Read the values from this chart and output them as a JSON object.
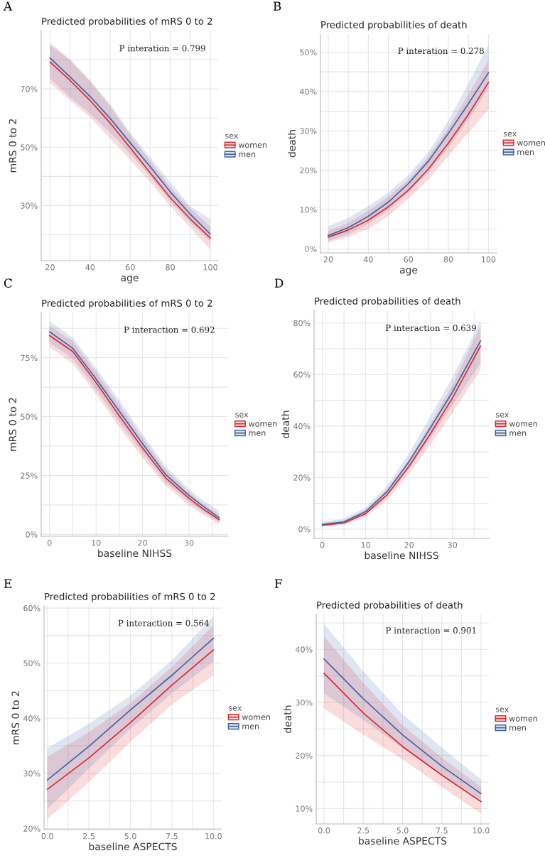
{
  "chart_data": [
    {
      "type": "line",
      "title": "Predicted probabilities of mRS 0 to 2",
      "xlabel": "age",
      "ylabel": "mRS 0 to 2",
      "legend_title": "sex",
      "legend": "right",
      "grid": true,
      "annotations": [
        "A",
        "P interation = 0.799"
      ],
      "x": [
        20,
        30,
        40,
        50,
        60,
        70,
        80,
        90,
        100
      ],
      "xlim": [
        15.6,
        103.9
      ],
      "ylim": [
        11.1,
        90
      ],
      "xticks": [
        20,
        {
          "value": 30,
          "label": null
        },
        40,
        {
          "value": 50,
          "label": null
        },
        60,
        {
          "value": 70,
          "label": null
        },
        80,
        {
          "value": 90,
          "label": null
        },
        100
      ],
      "yticks": [
        {
          "value": 20,
          "label": null
        },
        {
          "value": 30,
          "label": "30%"
        },
        {
          "value": 40,
          "label": null
        },
        {
          "value": 50,
          "label": "50%"
        },
        {
          "value": 60,
          "label": null
        },
        {
          "value": 70,
          "label": "70%"
        },
        {
          "value": 80,
          "label": null
        }
      ],
      "series": [
        {
          "name": "women",
          "color": "#e0262e",
          "values": [
            79.2,
            72.9,
            66.0,
            58.3,
            49.8,
            41.2,
            32.7,
            25.4,
            18.9
          ],
          "lower": [
            72.1,
            66.0,
            60.3,
            53.0,
            45.7,
            38.0,
            29.8,
            22.5,
            14.8
          ],
          "upper": [
            85.1,
            79.8,
            72.5,
            64.0,
            54.2,
            45.3,
            36.3,
            29.0,
            22.9
          ]
        },
        {
          "name": "men",
          "color": "#3f62a8",
          "values": [
            80.6,
            74.1,
            67.4,
            59.9,
            51.5,
            43.3,
            34.7,
            27.0,
            20.2
          ],
          "lower": [
            73.7,
            67.2,
            61.5,
            55.0,
            47.7,
            40.0,
            31.5,
            24.1,
            17.6
          ],
          "upper": [
            85.9,
            80.2,
            72.9,
            64.8,
            55.0,
            46.5,
            38.0,
            29.8,
            25.4
          ]
        }
      ]
    },
    {
      "type": "line",
      "title": "Predicted probabilities of death",
      "xlabel": "age",
      "ylabel": "death",
      "legend_title": "sex",
      "legend": "right",
      "grid": true,
      "annotations": [
        "B",
        "P interation = 0.278"
      ],
      "x": [
        20,
        30,
        40,
        50,
        60,
        70,
        80,
        90,
        100
      ],
      "xlim": [
        16.1,
        104.1
      ],
      "ylim": [
        -1.0,
        54.6
      ],
      "xticks": [
        20,
        {
          "value": 30,
          "label": null
        },
        40,
        {
          "value": 50,
          "label": null
        },
        60,
        {
          "value": 70,
          "label": null
        },
        80,
        {
          "value": 90,
          "label": null
        },
        100
      ],
      "yticks": [
        {
          "value": 0,
          "label": "0%"
        },
        {
          "value": 5,
          "label": null
        },
        {
          "value": 10,
          "label": "10%"
        },
        {
          "value": 15,
          "label": null
        },
        {
          "value": 20,
          "label": "20%"
        },
        {
          "value": 25,
          "label": null
        },
        {
          "value": 30,
          "label": "30%"
        },
        {
          "value": 35,
          "label": null
        },
        {
          "value": 40,
          "label": "40%"
        },
        {
          "value": 45,
          "label": null
        },
        {
          "value": 50,
          "label": "50%"
        }
      ],
      "series": [
        {
          "name": "women",
          "color": "#e0262e",
          "values": [
            3.0,
            4.8,
            7.3,
            10.7,
            14.9,
            20.3,
            26.9,
            34.2,
            42.3
          ],
          "lower": [
            1.6,
            3.1,
            5.1,
            8.4,
            12.8,
            17.6,
            23.6,
            29.6,
            35.4
          ],
          "upper": [
            4.5,
            6.7,
            9.7,
            13.3,
            17.6,
            23.4,
            30.8,
            39.3,
            48.0
          ]
        },
        {
          "name": "men",
          "color": "#3f62a8",
          "values": [
            3.4,
            5.4,
            8.3,
            11.9,
            16.6,
            22.3,
            29.4,
            36.9,
            44.8
          ],
          "lower": [
            2.0,
            3.7,
            6.4,
            9.8,
            14.3,
            19.4,
            25.7,
            33.0,
            40.8
          ],
          "upper": [
            5.8,
            7.9,
            10.9,
            14.3,
            18.8,
            24.6,
            32.7,
            42.0,
            52.0
          ]
        }
      ]
    },
    {
      "type": "line",
      "title": "Predicted probabilities of mRS 0 to 2",
      "xlabel": "baseline NIHSS",
      "ylabel": "mRS 0 to 2",
      "legend_title": "sex",
      "legend": "right",
      "grid": true,
      "annotations": [
        "C",
        "P interaction = 0.692"
      ],
      "x": [
        0,
        5,
        10,
        15,
        20,
        25,
        30,
        33,
        36.5
      ],
      "xlim": [
        -1.8,
        38.4
      ],
      "ylim": [
        -0.8,
        94.2
      ],
      "xticks": [
        0,
        {
          "value": 5,
          "label": null
        },
        10,
        {
          "value": 15,
          "label": null
        },
        20,
        {
          "value": 25,
          "label": null
        },
        30,
        {
          "value": 35,
          "label": null
        }
      ],
      "yticks": [
        {
          "value": 0,
          "label": "0%"
        },
        {
          "value": 12.5,
          "label": null
        },
        {
          "value": 25,
          "label": "25%"
        },
        {
          "value": 37.5,
          "label": null
        },
        {
          "value": 50,
          "label": "50%"
        },
        {
          "value": 62.5,
          "label": null
        },
        {
          "value": 75,
          "label": "75%"
        },
        {
          "value": 87.5,
          "label": null
        }
      ],
      "series": [
        {
          "name": "women",
          "color": "#e0262e",
          "values": [
            84.4,
            77.6,
            64.5,
            50.3,
            36.7,
            23.9,
            15.3,
            10.8,
            6.2
          ],
          "lower": [
            79.5,
            72.5,
            59.5,
            45.5,
            32.5,
            20.5,
            12.5,
            8.5,
            4.2
          ],
          "upper": [
            88.5,
            82.0,
            69.0,
            55.0,
            41.0,
            27.5,
            18.0,
            13.0,
            8.5
          ]
        },
        {
          "name": "men",
          "color": "#3f62a8",
          "values": [
            86.0,
            79.0,
            66.0,
            52.3,
            38.5,
            25.3,
            16.5,
            12.0,
            7.0
          ],
          "lower": [
            81.5,
            74.5,
            61.5,
            47.5,
            34.5,
            22.0,
            13.8,
            9.5,
            5.0
          ],
          "upper": [
            90.5,
            83.5,
            70.5,
            57.0,
            42.5,
            28.8,
            19.2,
            14.5,
            10.0
          ]
        }
      ]
    },
    {
      "type": "line",
      "title": "Predicted probabilities of death",
      "xlabel": "baseline NIHSS",
      "ylabel": "death",
      "legend_title": "sex",
      "legend": "right",
      "grid": true,
      "annotations": [
        "D",
        "P interaction = 0.639"
      ],
      "x": [
        0,
        5,
        10,
        15,
        20,
        25,
        30,
        36.5
      ],
      "xlim": [
        -1.9,
        38.4
      ],
      "ylim": [
        -3.6,
        84.9
      ],
      "xticks": [
        0,
        {
          "value": 5,
          "label": null
        },
        10,
        {
          "value": 15,
          "label": null
        },
        20,
        {
          "value": 25,
          "label": null
        },
        30,
        {
          "value": 35,
          "label": null
        }
      ],
      "yticks": [
        {
          "value": 0,
          "label": "0%"
        },
        {
          "value": 10,
          "label": null
        },
        {
          "value": 20,
          "label": "20%"
        },
        {
          "value": 30,
          "label": null
        },
        {
          "value": 40,
          "label": "40%"
        },
        {
          "value": 50,
          "label": null
        },
        {
          "value": 60,
          "label": "60%"
        },
        {
          "value": 70,
          "label": null
        },
        {
          "value": 80,
          "label": "80%"
        }
      ],
      "series": [
        {
          "name": "women",
          "color": "#e0262e",
          "values": [
            1.5,
            2.4,
            6.0,
            13.4,
            24.4,
            37.2,
            50.9,
            71.1
          ],
          "lower": [
            1.0,
            1.6,
            4.8,
            11.5,
            21.5,
            33.0,
            45.0,
            62.0
          ],
          "upper": [
            2.3,
            3.5,
            7.5,
            15.5,
            27.0,
            41.0,
            56.0,
            79.0
          ]
        },
        {
          "name": "men",
          "color": "#3f62a8",
          "values": [
            1.8,
            2.8,
            6.8,
            14.7,
            26.2,
            39.5,
            53.2,
            73.1
          ],
          "lower": [
            1.2,
            2.0,
            5.6,
            12.8,
            23.5,
            35.5,
            48.0,
            64.5
          ],
          "upper": [
            2.8,
            4.2,
            8.3,
            17.0,
            29.5,
            44.0,
            59.0,
            81.0
          ]
        }
      ]
    },
    {
      "type": "line",
      "title": "Predicted probabilities of mRS 0 to 2",
      "xlabel": "baseline ASPECTS",
      "ylabel": "mRS 0 to 2",
      "legend_title": "sex",
      "legend": "right",
      "grid": true,
      "annotations": [
        "E",
        "P interaction = 0.564"
      ],
      "x": [
        0,
        2.5,
        5,
        7.5,
        10
      ],
      "xlim": [
        -0.2,
        10.5
      ],
      "ylim": [
        19.8,
        60.4
      ],
      "xticks": [
        {
          "value": 0,
          "label": "0.0"
        },
        {
          "value": 1.25,
          "label": null
        },
        {
          "value": 2.5,
          "label": "2.5"
        },
        {
          "value": 3.75,
          "label": null
        },
        {
          "value": 5,
          "label": "5.0"
        },
        {
          "value": 6.25,
          "label": null
        },
        {
          "value": 7.5,
          "label": "7.5"
        },
        {
          "value": 8.75,
          "label": null
        },
        {
          "value": 10,
          "label": "10.0"
        }
      ],
      "yticks": [
        {
          "value": 20,
          "label": "20%"
        },
        {
          "value": 25,
          "label": null
        },
        {
          "value": 30,
          "label": "30%"
        },
        {
          "value": 35,
          "label": null
        },
        {
          "value": 40,
          "label": "40%"
        },
        {
          "value": 45,
          "label": null
        },
        {
          "value": 50,
          "label": "50%"
        },
        {
          "value": 55,
          "label": null
        },
        {
          "value": 60,
          "label": "60%"
        }
      ],
      "series": [
        {
          "name": "women",
          "color": "#e0262e",
          "values": [
            27.1,
            32.8,
            39.2,
            46.0,
            52.4
          ],
          "lower": [
            21.7,
            28.4,
            35.7,
            42.5,
            47.8
          ],
          "upper": [
            33.0,
            37.5,
            42.7,
            49.3,
            56.9
          ]
        },
        {
          "name": "men",
          "color": "#3f62a8",
          "values": [
            28.8,
            34.9,
            41.5,
            47.8,
            54.5
          ],
          "lower": [
            23.5,
            30.9,
            38.1,
            44.5,
            50.3
          ],
          "upper": [
            34.6,
            39.0,
            44.1,
            50.5,
            58.5
          ]
        }
      ]
    },
    {
      "type": "line",
      "title": "Predicted probabilities of death",
      "xlabel": "baseline ASPECTS",
      "ylabel": "death",
      "legend_title": "sex",
      "legend": "right",
      "grid": true,
      "annotations": [
        "F",
        "P interaction = 0.901"
      ],
      "x": [
        0,
        2.5,
        5,
        7.5,
        10
      ],
      "xlim": [
        -0.5,
        10.5
      ],
      "ylim": [
        7.1,
        46.6
      ],
      "xticks": [
        {
          "value": 0,
          "label": "0.0"
        },
        {
          "value": 1.25,
          "label": null
        },
        {
          "value": 2.5,
          "label": "2.5"
        },
        {
          "value": 3.75,
          "label": null
        },
        {
          "value": 5,
          "label": "5.0"
        },
        {
          "value": 6.25,
          "label": null
        },
        {
          "value": 7.5,
          "label": "7.5"
        },
        {
          "value": 8.75,
          "label": null
        },
        {
          "value": 10,
          "label": "10.0"
        }
      ],
      "yticks": [
        {
          "value": 10,
          "label": "10%"
        },
        {
          "value": 15,
          "label": null
        },
        {
          "value": 20,
          "label": "20%"
        },
        {
          "value": 25,
          "label": null
        },
        {
          "value": 30,
          "label": "30%"
        },
        {
          "value": 35,
          "label": null
        },
        {
          "value": 40,
          "label": "40%"
        },
        {
          "value": 45,
          "label": null
        }
      ],
      "series": [
        {
          "name": "women",
          "color": "#e0262e",
          "values": [
            35.5,
            28.0,
            21.7,
            16.3,
            11.3
          ],
          "lower": [
            28.9,
            23.9,
            19.3,
            14.1,
            9.0
          ],
          "upper": [
            42.4,
            33.7,
            25.7,
            19.6,
            14.1
          ]
        },
        {
          "name": "men",
          "color": "#3f62a8",
          "values": [
            38.2,
            30.7,
            23.9,
            18.0,
            12.8
          ],
          "lower": [
            31.7,
            26.7,
            21.4,
            16.2,
            11.4
          ],
          "upper": [
            44.8,
            35.9,
            27.8,
            21.5,
            15.5
          ]
        }
      ]
    }
  ]
}
